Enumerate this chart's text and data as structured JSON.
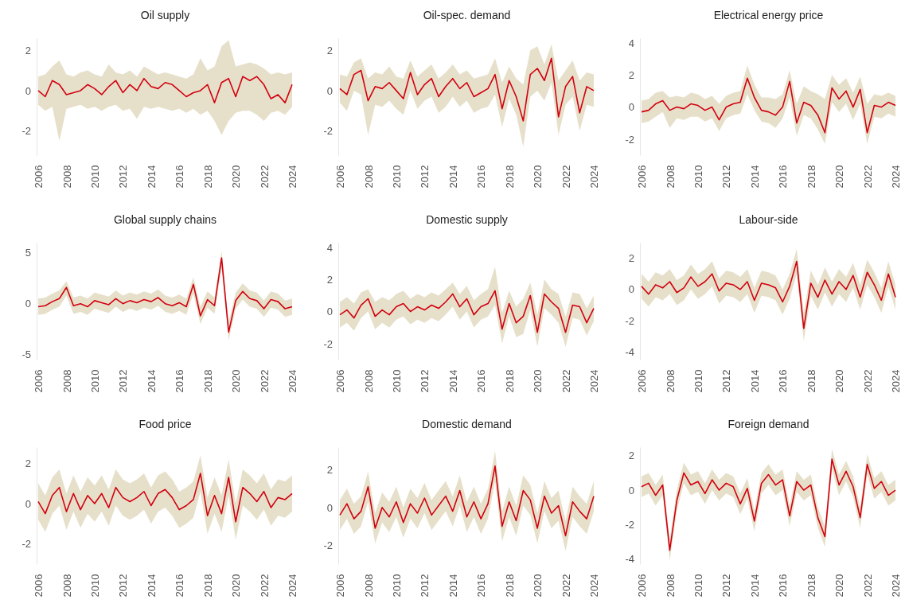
{
  "chart_data": [
    {
      "type": "line",
      "title": "Oil supply",
      "xlim": [
        2006,
        2024
      ],
      "xticks": [
        2006,
        2008,
        2010,
        2012,
        2014,
        2016,
        2018,
        2020,
        2022,
        2024
      ],
      "ylim": [
        -3.2,
        2.6
      ],
      "yticks": [
        -2,
        0,
        2
      ],
      "x": [
        2006,
        2006.5,
        2007,
        2007.5,
        2008,
        2008.5,
        2009,
        2009.5,
        2010,
        2010.5,
        2011,
        2011.5,
        2012,
        2012.5,
        2013,
        2013.5,
        2014,
        2014.5,
        2015,
        2015.5,
        2016,
        2016.5,
        2017,
        2017.5,
        2018,
        2018.5,
        2019,
        2019.5,
        2020,
        2020.5,
        2021,
        2021.5,
        2022,
        2022.5,
        2023,
        2023.5,
        2024
      ],
      "series": [
        {
          "color": "#d2000f",
          "values": [
            0,
            -0.3,
            0.5,
            0.3,
            -0.2,
            -0.1,
            0,
            0.3,
            0.1,
            -0.2,
            0.2,
            0.5,
            -0.1,
            0.3,
            0,
            0.6,
            0.2,
            0.1,
            0.4,
            0.3,
            0,
            -0.3,
            -0.1,
            0,
            0.3,
            -0.6,
            0.4,
            0.6,
            -0.3,
            0.7,
            0.5,
            0.7,
            0.3,
            -0.4,
            -0.2,
            -0.6,
            0.3
          ],
          "upper": [
            0.7,
            0.8,
            1.2,
            1.5,
            0.8,
            0.7,
            0.9,
            1.0,
            0.8,
            0.7,
            1.3,
            0.9,
            0.8,
            1.0,
            0.7,
            1.2,
            1.0,
            0.8,
            0.9,
            0.8,
            0.7,
            0.6,
            0.8,
            1.6,
            1.0,
            1.2,
            2.2,
            2.5,
            1.2,
            1.3,
            1.4,
            1.3,
            1.1,
            0.8,
            0.9,
            0.8,
            0.9
          ],
          "lower": [
            -0.7,
            -1.0,
            -0.8,
            -2.5,
            -0.9,
            -0.8,
            -0.7,
            -0.9,
            -0.8,
            -1.0,
            -0.8,
            -0.7,
            -1.0,
            -0.9,
            -1.4,
            -0.8,
            -0.9,
            -0.8,
            -0.9,
            -1.0,
            -0.9,
            -1.1,
            -0.9,
            -1.2,
            -1.0,
            -1.5,
            -2.2,
            -1.5,
            -1.1,
            -1.0,
            -1.0,
            -1.2,
            -1.5,
            -1.1,
            -1.0,
            -1.2,
            -0.8
          ]
        }
      ]
    },
    {
      "type": "line",
      "title": "Oil-spec. demand",
      "xlim": [
        2006,
        2024
      ],
      "xticks": [
        2006,
        2008,
        2010,
        2012,
        2014,
        2016,
        2018,
        2020,
        2022,
        2024
      ],
      "ylim": [
        -3.2,
        2.6
      ],
      "yticks": [
        -2,
        0,
        2
      ],
      "x": [
        2006,
        2006.5,
        2007,
        2007.5,
        2008,
        2008.5,
        2009,
        2009.5,
        2010,
        2010.5,
        2011,
        2011.5,
        2012,
        2012.5,
        2013,
        2013.5,
        2014,
        2014.5,
        2015,
        2015.5,
        2016,
        2016.5,
        2017,
        2017.5,
        2018,
        2018.5,
        2019,
        2019.5,
        2020,
        2020.5,
        2021,
        2021.5,
        2022,
        2022.5,
        2023,
        2023.5,
        2024
      ],
      "series": [
        {
          "color": "#d2000f",
          "values": [
            0.1,
            -0.2,
            0.8,
            1.0,
            -0.5,
            0.2,
            0.1,
            0.4,
            0,
            -0.4,
            0.9,
            -0.2,
            0.3,
            0.6,
            -0.3,
            0.2,
            0.6,
            0.1,
            0.4,
            -0.3,
            -0.1,
            0.1,
            0.8,
            -0.9,
            0.5,
            -0.3,
            -1.5,
            0.8,
            1.1,
            0.5,
            1.6,
            -1.3,
            0.2,
            0.7,
            -1.1,
            0.2,
            0
          ],
          "upper": [
            0.8,
            0.7,
            1.4,
            1.6,
            0.6,
            0.9,
            0.8,
            1.2,
            0.7,
            0.6,
            1.5,
            0.7,
            1.0,
            1.3,
            0.6,
            0.9,
            1.3,
            0.8,
            1.0,
            0.6,
            0.7,
            0.8,
            1.6,
            0.4,
            1.2,
            0.6,
            0.3,
            2.0,
            2.2,
            1.3,
            2.3,
            0.5,
            1.0,
            1.5,
            0.5,
            0.9,
            0.8
          ],
          "lower": [
            -0.6,
            -1.0,
            0,
            -0.2,
            -2.2,
            -0.7,
            -0.8,
            -0.5,
            -0.9,
            -1.2,
            0,
            -0.9,
            -0.5,
            -0.3,
            -1.1,
            -0.8,
            -0.3,
            -0.8,
            -0.5,
            -1.1,
            -0.9,
            -0.8,
            -0.2,
            -1.8,
            -0.4,
            -1.2,
            -2.8,
            -0.3,
            0,
            -0.5,
            0.4,
            -2.2,
            -0.7,
            -0.3,
            -2.0,
            -0.7,
            -0.8
          ]
        }
      ]
    },
    {
      "type": "line",
      "title": "Electrical energy price",
      "xlim": [
        2006,
        2024
      ],
      "xticks": [
        2006,
        2008,
        2010,
        2012,
        2014,
        2016,
        2018,
        2020,
        2022,
        2024
      ],
      "ylim": [
        -3,
        4.3
      ],
      "yticks": [
        -2,
        0,
        2,
        4
      ],
      "x": [
        2006,
        2006.5,
        2007,
        2007.5,
        2008,
        2008.5,
        2009,
        2009.5,
        2010,
        2010.5,
        2011,
        2011.5,
        2012,
        2012.5,
        2013,
        2013.5,
        2014,
        2014.5,
        2015,
        2015.5,
        2016,
        2016.5,
        2017,
        2017.5,
        2018,
        2018.5,
        2019,
        2019.5,
        2020,
        2020.5,
        2021,
        2021.5,
        2022,
        2022.5,
        2023,
        2023.5,
        2024
      ],
      "series": [
        {
          "color": "#d2000f",
          "values": [
            -0.3,
            -0.2,
            0.2,
            0.4,
            -0.2,
            0,
            -0.1,
            0.2,
            0.1,
            -0.2,
            0,
            -0.8,
            0,
            0.2,
            0.3,
            1.8,
            0.6,
            -0.2,
            -0.3,
            -0.5,
            0,
            1.6,
            -1,
            0.3,
            0.1,
            -0.5,
            -1.6,
            1.2,
            0.5,
            1,
            0,
            1.1,
            -1.6,
            0.1,
            0,
            0.3,
            0.1
          ],
          "upper": [
            0.4,
            0.5,
            0.9,
            1.0,
            0.6,
            0.7,
            0.6,
            0.9,
            0.8,
            0.5,
            0.7,
            0.2,
            0.7,
            0.9,
            1.0,
            2.6,
            1.4,
            0.6,
            0.6,
            0.5,
            0.8,
            2.3,
            0.2,
            1.3,
            1.0,
            0.8,
            0.5,
            2.0,
            1.4,
            1.8,
            0.9,
            1.9,
            0.2,
            0.8,
            0.7,
            0.9,
            0.7
          ],
          "lower": [
            -1.0,
            -0.9,
            -0.6,
            -0.3,
            -1.3,
            -0.7,
            -0.8,
            -0.6,
            -0.6,
            -0.9,
            -0.7,
            -1.5,
            -0.7,
            -0.5,
            -0.4,
            0.8,
            -0.2,
            -0.9,
            -1.0,
            -1.3,
            -0.7,
            0.6,
            -1.8,
            -0.5,
            -0.7,
            -1.4,
            -2.3,
            0.3,
            -0.3,
            0.2,
            -0.8,
            0.2,
            -2.3,
            -0.6,
            -0.7,
            -0.4,
            -0.6
          ]
        }
      ]
    },
    {
      "type": "line",
      "title": "Global supply chains",
      "xlim": [
        2006,
        2024
      ],
      "xticks": [
        2006,
        2008,
        2010,
        2012,
        2014,
        2016,
        2018,
        2020,
        2022,
        2024
      ],
      "ylim": [
        -5.5,
        6
      ],
      "yticks": [
        -5,
        0,
        5
      ],
      "x": [
        2006,
        2006.5,
        2007,
        2007.5,
        2008,
        2008.5,
        2009,
        2009.5,
        2010,
        2010.5,
        2011,
        2011.5,
        2012,
        2012.5,
        2013,
        2013.5,
        2014,
        2014.5,
        2015,
        2015.5,
        2016,
        2016.5,
        2017,
        2017.5,
        2018,
        2018.5,
        2019,
        2019.5,
        2020,
        2020.5,
        2021,
        2021.5,
        2022,
        2022.5,
        2023,
        2023.5,
        2024
      ],
      "series": [
        {
          "color": "#d2000f",
          "values": [
            -0.3,
            -0.2,
            0.2,
            0.5,
            1.6,
            -0.2,
            0,
            -0.3,
            0.3,
            0.1,
            -0.1,
            0.5,
            0,
            0.3,
            0.1,
            0.4,
            0.2,
            0.6,
            0,
            -0.2,
            0.1,
            -0.3,
            1.9,
            -1.2,
            0.4,
            -0.2,
            4.5,
            -2.8,
            0.3,
            1.2,
            0.5,
            0.3,
            -0.5,
            0.4,
            0.2,
            -0.5,
            -0.3
          ],
          "upper": [
            0.5,
            0.6,
            1.0,
            1.3,
            2.2,
            0.6,
            0.8,
            0.5,
            1.1,
            0.9,
            0.7,
            1.3,
            0.8,
            1.1,
            0.9,
            1.2,
            1.0,
            1.4,
            0.8,
            0.6,
            0.9,
            0.5,
            2.6,
            -0.3,
            1.2,
            0.6,
            5.2,
            -1.8,
            1.1,
            2.0,
            1.3,
            1.1,
            0.3,
            1.2,
            1.0,
            0.3,
            0.5
          ],
          "lower": [
            -1.1,
            -1.0,
            -0.6,
            -0.3,
            0.8,
            -1.0,
            -0.8,
            -1.1,
            -0.5,
            -0.7,
            -0.9,
            -0.3,
            -0.8,
            -0.5,
            -0.7,
            -0.4,
            -0.6,
            -0.2,
            -0.8,
            -1.0,
            -0.7,
            -1.1,
            1.0,
            -2.0,
            -0.4,
            -1.0,
            3.5,
            -3.6,
            -0.5,
            0.4,
            -0.3,
            -0.5,
            -1.3,
            -0.4,
            -0.6,
            -1.3,
            -1.1
          ]
        }
      ]
    },
    {
      "type": "line",
      "title": "Domestic supply",
      "xlim": [
        2006,
        2024
      ],
      "xticks": [
        2006,
        2008,
        2010,
        2012,
        2014,
        2016,
        2018,
        2020,
        2022,
        2024
      ],
      "ylim": [
        -3,
        4.3
      ],
      "yticks": [
        -2,
        0,
        2,
        4
      ],
      "x": [
        2006,
        2006.5,
        2007,
        2007.5,
        2008,
        2008.5,
        2009,
        2009.5,
        2010,
        2010.5,
        2011,
        2011.5,
        2012,
        2012.5,
        2013,
        2013.5,
        2014,
        2014.5,
        2015,
        2015.5,
        2016,
        2016.5,
        2017,
        2017.5,
        2018,
        2018.5,
        2019,
        2019.5,
        2020,
        2020.5,
        2021,
        2021.5,
        2022,
        2022.5,
        2023,
        2023.5,
        2024
      ],
      "series": [
        {
          "color": "#d2000f",
          "values": [
            -0.2,
            0.1,
            -0.4,
            0.4,
            0.8,
            -0.3,
            0.1,
            -0.2,
            0.3,
            0.5,
            0,
            0.3,
            0.1,
            0.4,
            0.2,
            0.6,
            1.1,
            0.3,
            0.8,
            -0.2,
            0.3,
            0.5,
            1.3,
            -1.1,
            0.5,
            -0.7,
            -0.3,
            1.0,
            -1.3,
            1.1,
            0.6,
            0.2,
            -1.3,
            0.4,
            0.3,
            -0.7,
            0.2
          ],
          "upper": [
            0.6,
            0.9,
            0.5,
            1.2,
            1.4,
            0.6,
            0.9,
            0.7,
            1.1,
            1.3,
            0.8,
            1.1,
            0.9,
            1.2,
            1.0,
            1.4,
            1.8,
            1.1,
            1.6,
            0.7,
            1.1,
            1.4,
            2.8,
            -0.1,
            1.3,
            0.3,
            0.8,
            1.8,
            -0.2,
            2.0,
            1.4,
            1.1,
            -0.3,
            1.2,
            1.1,
            0.2,
            1.0
          ],
          "lower": [
            -1.0,
            -0.7,
            -1.2,
            -0.4,
            0,
            -1.1,
            -0.7,
            -1.0,
            -0.5,
            -0.3,
            -0.8,
            -0.5,
            -0.7,
            -0.4,
            -0.6,
            -0.2,
            0.3,
            -0.5,
            0,
            -1.0,
            -0.5,
            -0.3,
            0.4,
            -2.0,
            -0.3,
            -1.6,
            -1.4,
            0.1,
            -2.2,
            0.2,
            -0.2,
            -0.7,
            -2.2,
            -0.4,
            -0.5,
            -1.5,
            -0.6
          ]
        }
      ]
    },
    {
      "type": "line",
      "title": "Labour-side",
      "xlim": [
        2006,
        2024
      ],
      "xticks": [
        2006,
        2008,
        2010,
        2012,
        2014,
        2016,
        2018,
        2020,
        2022,
        2024
      ],
      "ylim": [
        -4.5,
        3
      ],
      "yticks": [
        -4,
        -2,
        0,
        2
      ],
      "x": [
        2006,
        2006.5,
        2007,
        2007.5,
        2008,
        2008.5,
        2009,
        2009.5,
        2010,
        2010.5,
        2011,
        2011.5,
        2012,
        2012.5,
        2013,
        2013.5,
        2014,
        2014.5,
        2015,
        2015.5,
        2016,
        2016.5,
        2017,
        2017.5,
        2018,
        2018.5,
        2019,
        2019.5,
        2020,
        2020.5,
        2021,
        2021.5,
        2022,
        2022.5,
        2023,
        2023.5,
        2024
      ],
      "series": [
        {
          "color": "#d2000f",
          "values": [
            0.2,
            -0.3,
            0.3,
            0.1,
            0.5,
            -0.2,
            0.1,
            0.8,
            0.2,
            0.5,
            1.0,
            -0.1,
            0.4,
            0.3,
            0,
            0.5,
            -0.7,
            0.4,
            0.3,
            0.1,
            -0.8,
            0.2,
            1.8,
            -2.5,
            0.4,
            -0.5,
            0.6,
            -0.3,
            0.5,
            0,
            0.9,
            -0.5,
            1.1,
            0.3,
            -0.7,
            1.0,
            -0.5
          ],
          "upper": [
            1.0,
            0.5,
            1.1,
            0.9,
            1.3,
            0.6,
            0.9,
            1.6,
            1.0,
            1.3,
            1.8,
            0.7,
            1.2,
            1.1,
            0.8,
            1.3,
            0.1,
            1.2,
            1.1,
            0.9,
            0,
            1.0,
            2.6,
            -1.5,
            1.2,
            0.3,
            1.4,
            0.5,
            1.3,
            0.8,
            1.7,
            0.3,
            1.9,
            1.1,
            0.1,
            1.8,
            0.3
          ],
          "lower": [
            -0.6,
            -1.1,
            -0.5,
            -0.7,
            -0.3,
            -1.0,
            -0.7,
            0,
            -0.6,
            -0.3,
            0.2,
            -0.9,
            -0.4,
            -0.5,
            -0.8,
            -0.3,
            -1.5,
            -0.4,
            -0.5,
            -0.7,
            -1.6,
            -0.6,
            1.0,
            -3.3,
            -0.4,
            -1.3,
            -0.2,
            -1.1,
            -0.3,
            -0.8,
            0.1,
            -1.3,
            0.3,
            -0.5,
            -1.5,
            0.2,
            -1.3
          ]
        }
      ]
    },
    {
      "type": "line",
      "title": "Food price",
      "xlim": [
        2006,
        2024
      ],
      "xticks": [
        2006,
        2008,
        2010,
        2012,
        2014,
        2016,
        2018,
        2020,
        2022,
        2024
      ],
      "ylim": [
        -3,
        2.8
      ],
      "yticks": [
        -2,
        0,
        2
      ],
      "x": [
        2006,
        2006.5,
        2007,
        2007.5,
        2008,
        2008.5,
        2009,
        2009.5,
        2010,
        2010.5,
        2011,
        2011.5,
        2012,
        2012.5,
        2013,
        2013.5,
        2014,
        2014.5,
        2015,
        2015.5,
        2016,
        2016.5,
        2017,
        2017.5,
        2018,
        2018.5,
        2019,
        2019.5,
        2020,
        2020.5,
        2021,
        2021.5,
        2022,
        2022.5,
        2023,
        2023.5,
        2024
      ],
      "series": [
        {
          "color": "#d2000f",
          "values": [
            0.1,
            -0.5,
            0.4,
            0.8,
            -0.4,
            0.5,
            -0.3,
            0.4,
            0,
            0.5,
            -0.2,
            0.8,
            0.3,
            0.1,
            0.3,
            0.6,
            -0.1,
            0.5,
            0.7,
            0.3,
            -0.3,
            -0.1,
            0.2,
            1.5,
            -0.6,
            0.4,
            -0.5,
            1.3,
            -0.9,
            0.8,
            0.5,
            0.1,
            0.6,
            -0.2,
            0.3,
            0.2,
            0.5
          ],
          "upper": [
            1.0,
            0.4,
            1.3,
            1.7,
            0.5,
            1.4,
            0.6,
            1.3,
            0.9,
            1.4,
            0.7,
            1.7,
            1.2,
            1.0,
            1.2,
            1.5,
            0.8,
            1.4,
            1.6,
            1.2,
            0.6,
            0.8,
            1.1,
            2.4,
            0.3,
            1.3,
            0.4,
            2.2,
            0,
            1.7,
            1.4,
            1.0,
            1.5,
            0.7,
            1.2,
            1.1,
            1.4
          ],
          "lower": [
            -0.8,
            -1.4,
            -0.5,
            -0.1,
            -1.3,
            -0.4,
            -1.2,
            -0.5,
            -0.9,
            -0.4,
            -1.1,
            -0.1,
            -0.6,
            -0.8,
            -0.6,
            -0.3,
            -1.0,
            -0.4,
            -0.2,
            -0.6,
            -1.2,
            -1.0,
            -0.7,
            0.6,
            -1.5,
            -0.5,
            -1.4,
            0.4,
            -1.8,
            -0.1,
            -0.4,
            -0.8,
            -0.3,
            -1.1,
            -0.6,
            -0.7,
            -0.4
          ]
        }
      ]
    },
    {
      "type": "line",
      "title": "Domestic demand",
      "xlim": [
        2006,
        2024
      ],
      "xticks": [
        2006,
        2008,
        2010,
        2012,
        2014,
        2016,
        2018,
        2020,
        2022,
        2024
      ],
      "ylim": [
        -3,
        3.2
      ],
      "yticks": [
        -2,
        0,
        2
      ],
      "x": [
        2006,
        2006.5,
        2007,
        2007.5,
        2008,
        2008.5,
        2009,
        2009.5,
        2010,
        2010.5,
        2011,
        2011.5,
        2012,
        2012.5,
        2013,
        2013.5,
        2014,
        2014.5,
        2015,
        2015.5,
        2016,
        2016.5,
        2017,
        2017.5,
        2018,
        2018.5,
        2019,
        2019.5,
        2020,
        2020.5,
        2021,
        2021.5,
        2022,
        2022.5,
        2023,
        2023.5,
        2024
      ],
      "series": [
        {
          "color": "#d2000f",
          "values": [
            -0.4,
            0.2,
            -0.6,
            -0.2,
            1.1,
            -1.1,
            0,
            -0.5,
            0.3,
            -0.8,
            0.2,
            -0.3,
            0.5,
            -0.4,
            0.1,
            0.6,
            -0.2,
            0.9,
            -0.5,
            0.3,
            -0.6,
            0.2,
            2.2,
            -1.0,
            0.3,
            -0.7,
            0.9,
            0.4,
            -1.1,
            0.6,
            -0.3,
            0.1,
            -1.5,
            0.3,
            -0.2,
            -0.6,
            0.6
          ],
          "upper": [
            0.4,
            1.0,
            0.2,
            0.6,
            1.9,
            -0.3,
            0.8,
            0.3,
            1.1,
            0,
            1.0,
            0.5,
            1.3,
            0.4,
            0.9,
            1.4,
            0.6,
            1.7,
            0.3,
            1.1,
            0.2,
            1.0,
            3.0,
            -0.2,
            1.1,
            0.1,
            1.7,
            1.2,
            -0.3,
            1.4,
            0.5,
            0.9,
            -0.7,
            1.1,
            0.6,
            0.2,
            1.4
          ],
          "lower": [
            -1.2,
            -0.6,
            -1.4,
            -1.0,
            0.3,
            -1.9,
            -0.8,
            -1.3,
            -0.5,
            -1.6,
            -0.6,
            -1.1,
            -0.3,
            -1.2,
            -0.7,
            -0.2,
            -1.0,
            0.1,
            -1.3,
            -0.5,
            -1.4,
            -0.6,
            1.4,
            -1.8,
            -0.5,
            -1.5,
            0.1,
            -0.4,
            -1.9,
            -0.2,
            -1.1,
            -0.7,
            -2.3,
            -0.5,
            -1.0,
            -1.4,
            -0.2
          ]
        }
      ]
    },
    {
      "type": "line",
      "title": "Foreign demand",
      "xlim": [
        2006,
        2024
      ],
      "xticks": [
        2006,
        2008,
        2010,
        2012,
        2014,
        2016,
        2018,
        2020,
        2022,
        2024
      ],
      "ylim": [
        -4.3,
        2.5
      ],
      "yticks": [
        -4,
        -2,
        0,
        2
      ],
      "x": [
        2006,
        2006.5,
        2007,
        2007.5,
        2008,
        2008.5,
        2009,
        2009.5,
        2010,
        2010.5,
        2011,
        2011.5,
        2012,
        2012.5,
        2013,
        2013.5,
        2014,
        2014.5,
        2015,
        2015.5,
        2016,
        2016.5,
        2017,
        2017.5,
        2018,
        2018.5,
        2019,
        2019.5,
        2020,
        2020.5,
        2021,
        2021.5,
        2022,
        2022.5,
        2023,
        2023.5,
        2024
      ],
      "series": [
        {
          "color": "#d2000f",
          "values": [
            0.2,
            0.4,
            -0.3,
            0.3,
            -3.5,
            -0.6,
            1.0,
            0.3,
            0.5,
            -0.2,
            0.6,
            0,
            0.4,
            0.2,
            -0.8,
            0.1,
            -1.8,
            0.4,
            0.9,
            0.3,
            0.6,
            -1.5,
            0.5,
            0,
            0.3,
            -1.6,
            -2.7,
            1.8,
            0.3,
            1.1,
            0.2,
            -1.6,
            1.5,
            0.1,
            0.5,
            -0.3,
            0
          ],
          "upper": [
            0.8,
            1.0,
            0.3,
            0.9,
            -2.9,
            0,
            1.6,
            0.9,
            1.1,
            0.4,
            1.2,
            0.6,
            1.0,
            0.8,
            -0.2,
            0.7,
            -1.2,
            1.0,
            1.5,
            0.9,
            1.2,
            -0.9,
            1.1,
            0.6,
            0.9,
            -1.0,
            -2.1,
            2.4,
            0.9,
            1.7,
            0.8,
            -1.0,
            2.1,
            0.7,
            1.1,
            0.3,
            0.6
          ],
          "lower": [
            -0.4,
            -0.2,
            -0.9,
            -0.3,
            -4.1,
            -1.2,
            0.4,
            -0.3,
            -0.1,
            -0.8,
            0,
            -0.6,
            -0.2,
            -0.4,
            -1.4,
            -0.5,
            -2.4,
            -0.2,
            0.3,
            -0.3,
            0,
            -2.1,
            -0.1,
            -0.6,
            -0.3,
            -2.2,
            -3.3,
            1.2,
            -0.3,
            0.5,
            -0.4,
            -2.2,
            0.9,
            -0.5,
            -0.1,
            -0.9,
            -0.6
          ]
        }
      ]
    }
  ]
}
